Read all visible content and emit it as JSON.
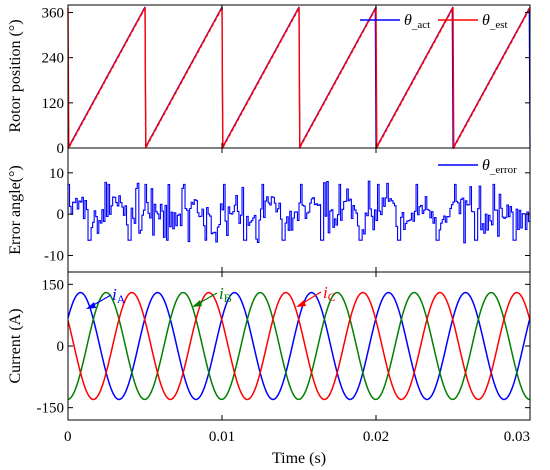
{
  "x_axis": {
    "label": "Time (s)",
    "range": [
      0,
      0.03
    ],
    "ticks": [
      0,
      0.01,
      0.02,
      0.03
    ],
    "tick_labels": [
      "0",
      "0.01",
      "0.02",
      "0.03"
    ]
  },
  "colors": {
    "act": "#0000ff",
    "est": "#ff0000",
    "error": "#0000ff",
    "iA": "#0000ff",
    "iB": "#008000",
    "iC": "#ff0000"
  },
  "chart_data": [
    {
      "type": "line",
      "ylabel": "Rotor position (°)",
      "ylim": [
        0,
        380
      ],
      "yticks": [
        0,
        120,
        240,
        360
      ],
      "ytick_labels": [
        "0",
        "120",
        "240",
        "360"
      ],
      "legend_position": "top-right",
      "series": [
        {
          "name": "θ_act",
          "symbol": "θ",
          "subscript": "_act",
          "kind": "sawtooth",
          "period_s": 0.005,
          "amplitude_deg": 375
        },
        {
          "name": "θ_est",
          "symbol": "θ",
          "subscript": "_est",
          "kind": "sawtooth",
          "period_s": 0.005,
          "amplitude_deg": 375
        }
      ]
    },
    {
      "type": "line",
      "ylabel": "Error angle(°)",
      "ylim": [
        -14,
        16
      ],
      "yticks": [
        -10,
        0,
        10
      ],
      "ytick_labels": [
        "-10",
        "0",
        "10"
      ],
      "legend_position": "top-right",
      "series": [
        {
          "name": "θ_error",
          "symbol": "θ",
          "subscript": "_error",
          "kind": "noise",
          "range_deg": [
            -7,
            8
          ]
        }
      ]
    },
    {
      "type": "line",
      "ylabel": "Current (A)",
      "ylim": [
        -180,
        180
      ],
      "yticks": [
        -150,
        0,
        150
      ],
      "ytick_labels": [
        "-150",
        "0",
        "150"
      ],
      "series": [
        {
          "name": "iA",
          "symbol": "i",
          "subscript": "A",
          "kind": "sine",
          "amplitude_A": 130,
          "frequency_hz": 200,
          "phase_deg": 0
        },
        {
          "name": "iB",
          "symbol": "i",
          "subscript": "B",
          "kind": "sine",
          "amplitude_A": 130,
          "frequency_hz": 200,
          "phase_deg": -120
        },
        {
          "name": "iC",
          "symbol": "i",
          "subscript": "C",
          "kind": "sine",
          "amplitude_A": 130,
          "frequency_hz": 200,
          "phase_deg": 120
        }
      ]
    }
  ]
}
